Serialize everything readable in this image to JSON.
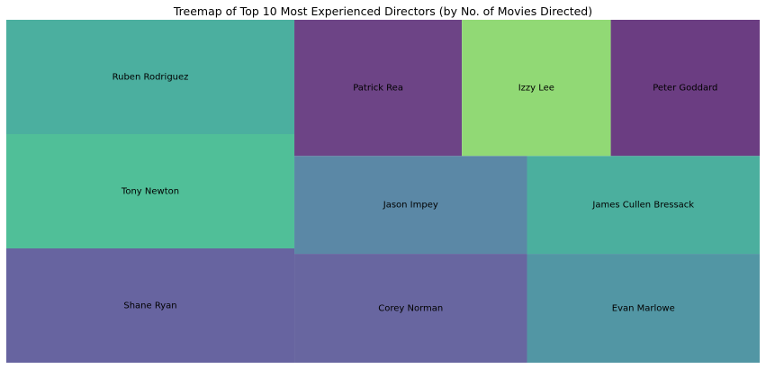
{
  "chart_data": {
    "type": "treemap",
    "title": "Treemap of Top 10 Most Experienced Directors (by No. of Movies Directed)",
    "xlabel": "",
    "ylabel": "",
    "grid": false,
    "items": [
      {
        "name": "Shane Ryan",
        "value": 13,
        "color": "#6764a0"
      },
      {
        "name": "Tony Newton",
        "value": 13,
        "color": "#50bf98"
      },
      {
        "name": "Ruben Rodriguez",
        "value": 13,
        "color": "#4baf9f"
      },
      {
        "name": "Corey Norman",
        "value": 10,
        "color": "#6866a0"
      },
      {
        "name": "Evan Marlowe",
        "value": 10,
        "color": "#5296a4"
      },
      {
        "name": "Jason Impey",
        "value": 9,
        "color": "#5b88a6"
      },
      {
        "name": "James Cullen Bressack",
        "value": 9,
        "color": "#4baf9e"
      },
      {
        "name": "Patrick Rea",
        "value": 9,
        "color": "#6d4486"
      },
      {
        "name": "Izzy Lee",
        "value": 8,
        "color": "#91d975"
      },
      {
        "name": "Peter Goddard",
        "value": 8,
        "color": "#6b3d82"
      }
    ]
  }
}
